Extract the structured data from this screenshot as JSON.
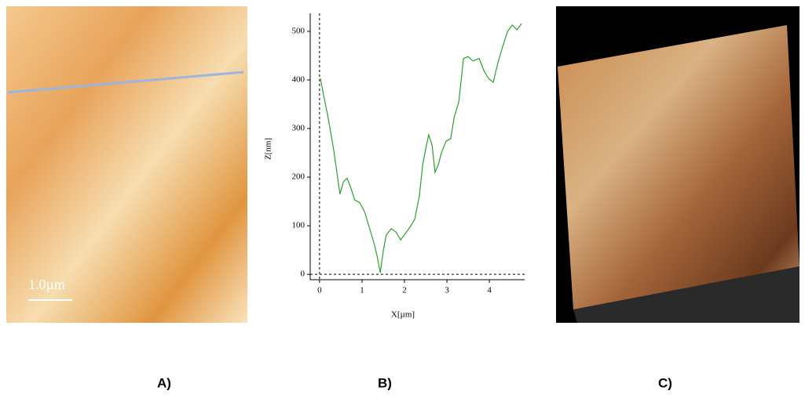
{
  "panel_labels": [
    "A)",
    "B)",
    "C)"
  ],
  "scale_bar": "1.0µm",
  "chart_data": {
    "type": "line",
    "xlabel": "X[µm]",
    "ylabel": "Z[nm]",
    "xlim": [
      -0.22,
      4.83
    ],
    "ylim": [
      -11,
      537
    ],
    "xticks": [
      0,
      1,
      2,
      3,
      4
    ],
    "yticks": [
      0,
      100,
      200,
      300,
      400,
      500
    ],
    "series": [
      {
        "color": "#2ca02c",
        "x": [
          0.02,
          0.09,
          0.2,
          0.33,
          0.48,
          0.56,
          0.65,
          0.74,
          0.83,
          0.94,
          1.06,
          1.17,
          1.28,
          1.35,
          1.43,
          1.5,
          1.57,
          1.69,
          1.8,
          1.91,
          2.02,
          2.13,
          2.24,
          2.35,
          2.43,
          2.5,
          2.57,
          2.65,
          2.72,
          2.8,
          2.87,
          2.98,
          3.09,
          3.17,
          3.28,
          3.39,
          3.5,
          3.61,
          3.76,
          3.87,
          3.98,
          4.09,
          4.2,
          4.31,
          4.43,
          4.54,
          4.65,
          4.76
        ],
        "values": [
          403,
          371,
          323,
          258,
          165,
          190,
          198,
          177,
          153,
          148,
          129,
          97,
          65,
          40,
          3,
          48,
          81,
          94,
          87,
          71,
          84,
          97,
          113,
          161,
          226,
          258,
          287,
          266,
          210,
          226,
          250,
          274,
          279,
          323,
          355,
          444,
          448,
          439,
          444,
          419,
          403,
          395,
          435,
          468,
          500,
          513,
          503,
          516
        ]
      }
    ]
  }
}
